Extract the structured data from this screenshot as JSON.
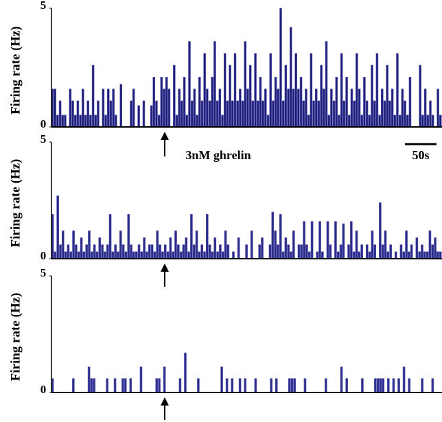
{
  "chart_data": [
    {
      "type": "bar",
      "ylabel": "Firing rate (Hz)",
      "ylim": [
        0,
        5
      ],
      "yticks": [
        0,
        5
      ],
      "color": "#1f1f7a",
      "annotations": [
        "3nM ghrelin",
        "50s"
      ],
      "values": [
        1.6,
        1.6,
        0.5,
        1.1,
        0.5,
        0.5,
        0,
        1.6,
        1.1,
        0.5,
        1.1,
        0.5,
        1.6,
        0.5,
        1.1,
        0.5,
        2.6,
        0.5,
        1.1,
        0,
        1.6,
        0.5,
        1.6,
        1.1,
        1.6,
        0.5,
        0,
        1.8,
        0,
        0,
        0,
        1.1,
        1.6,
        0,
        0.9,
        0,
        1.1,
        0,
        0,
        0.9,
        2.1,
        1.1,
        0.5,
        2.1,
        1.6,
        2.1,
        1.6,
        0,
        2.6,
        0.5,
        1.6,
        1.1,
        2.1,
        0.5,
        3.6,
        1.1,
        1.6,
        0.5,
        2.1,
        1.1,
        3.1,
        1.6,
        1.1,
        2.1,
        3.6,
        1.1,
        1.6,
        0.5,
        3.1,
        1.1,
        2.6,
        1.1,
        3.1,
        1.1,
        1.6,
        1.1,
        3.6,
        1.6,
        2.6,
        1.1,
        3.1,
        1.1,
        2.1,
        1.1,
        1.6,
        0.5,
        3.1,
        1.1,
        2.1,
        1.6,
        5,
        1.1,
        2.6,
        1.6,
        4.2,
        1.6,
        3.1,
        1.6,
        2.1,
        1.1,
        1.6,
        0.5,
        3.1,
        1.1,
        1.6,
        1.1,
        2.6,
        1.6,
        3.6,
        0.5,
        1.6,
        1.1,
        2.1,
        0.5,
        3.1,
        1.1,
        2.1,
        0.5,
        1.6,
        1.1,
        3.1,
        1.6,
        0.5,
        2.1,
        1.1,
        0.5,
        2.6,
        1.1,
        3.1,
        0.5,
        1.6,
        1.1,
        2.6,
        1.1,
        1.6,
        0.5,
        3.1,
        0.5,
        1.6,
        1.1,
        0.5,
        2.1,
        0,
        0,
        0,
        2.6,
        0.5,
        1.6,
        0.5,
        1.1,
        0.5,
        0,
        1.6,
        0.5
      ]
    },
    {
      "type": "bar",
      "ylabel": "Firing rate (Hz)",
      "ylim": [
        0,
        5
      ],
      "yticks": [
        0,
        5
      ],
      "color": "#2a2a88",
      "values": [
        1.9,
        0.3,
        2.7,
        0.6,
        1.2,
        0.3,
        0.6,
        0.3,
        1.2,
        0.6,
        0.3,
        0.9,
        0.3,
        0.6,
        1.2,
        0.3,
        0.6,
        0.3,
        0.9,
        0.6,
        0.3,
        0.6,
        1.9,
        0.3,
        0.6,
        0.3,
        1.2,
        0.6,
        0.3,
        1.9,
        0.6,
        0.3,
        0.3,
        0.6,
        0.3,
        0.9,
        0.3,
        0.6,
        0.6,
        0.3,
        1.2,
        0.6,
        0.3,
        0.6,
        0.3,
        0.9,
        0.3,
        1.2,
        0.6,
        0.3,
        0.6,
        0.9,
        0.3,
        1.9,
        0.6,
        1.2,
        0.3,
        0.6,
        0.3,
        1.9,
        0.6,
        0.3,
        0.9,
        0.3,
        0.6,
        0.3,
        1.2,
        0.6,
        0,
        0.3,
        0,
        0.9,
        0,
        0,
        0.6,
        0,
        1.2,
        0,
        0,
        0.6,
        0.9,
        0,
        0,
        0.6,
        2.0,
        1.2,
        0.6,
        1.9,
        0.3,
        0.9,
        0.6,
        0.3,
        1.2,
        0,
        0.6,
        0.6,
        1.6,
        0.6,
        0.3,
        1.6,
        0,
        0.3,
        1.6,
        0.3,
        0,
        1.6,
        0.6,
        0,
        1.6,
        0.3,
        0.6,
        1.5,
        0,
        0.6,
        1.6,
        0.3,
        1.2,
        0.3,
        0.6,
        0,
        0.6,
        0.3,
        1.2,
        0.6,
        0,
        2.4,
        0.6,
        1.2,
        0.3,
        0.6,
        0,
        0.3,
        0,
        0.6,
        0.3,
        1.2,
        0.3,
        0.6,
        0,
        0.9,
        0.3,
        0.6,
        0.3,
        0.3,
        1.2,
        0.6,
        0.9,
        0.3,
        0.3
      ]
    },
    {
      "type": "bar",
      "ylabel": "Firing rate (Hz)",
      "ylim": [
        0,
        5
      ],
      "yticks": [
        0,
        5
      ],
      "color": "#2f2f90",
      "values": [
        0.6,
        0,
        0,
        0,
        0,
        0,
        0,
        0,
        0.6,
        0,
        0,
        0,
        0,
        0,
        1.1,
        0.6,
        0.6,
        0,
        0,
        0,
        0,
        0.6,
        0,
        0,
        0.6,
        0,
        0,
        0.6,
        0.6,
        0,
        0.6,
        0,
        0,
        0,
        1.1,
        0,
        0,
        0,
        0,
        0,
        0.6,
        0.6,
        0,
        1.1,
        0,
        0,
        0,
        0,
        0,
        0.6,
        0,
        1.7,
        0,
        0,
        0,
        0,
        0.6,
        0,
        0,
        0,
        0,
        0,
        0,
        0,
        0,
        1.1,
        0,
        0.6,
        0,
        0.6,
        0,
        0,
        0.6,
        0,
        0.6,
        0,
        0,
        0,
        0.6,
        0,
        0,
        0,
        0,
        0,
        0.6,
        0,
        0.6,
        0,
        0,
        0,
        0,
        0.6,
        0.6,
        0.6,
        0,
        0,
        0,
        0.6,
        0,
        0,
        0,
        0,
        0,
        0,
        0,
        0.6,
        0,
        0,
        0,
        0,
        0,
        1.1,
        0,
        0.6,
        0,
        0,
        0,
        0,
        0,
        0.6,
        0,
        0,
        0,
        0,
        0.6,
        0.6,
        0.6,
        0.6,
        0,
        0.6,
        0,
        0.6,
        0,
        0.6,
        0,
        1.1,
        0,
        0.6,
        0,
        0,
        0,
        0,
        0.6,
        0,
        0,
        0,
        0.6,
        0,
        0,
        0
      ]
    }
  ]
}
